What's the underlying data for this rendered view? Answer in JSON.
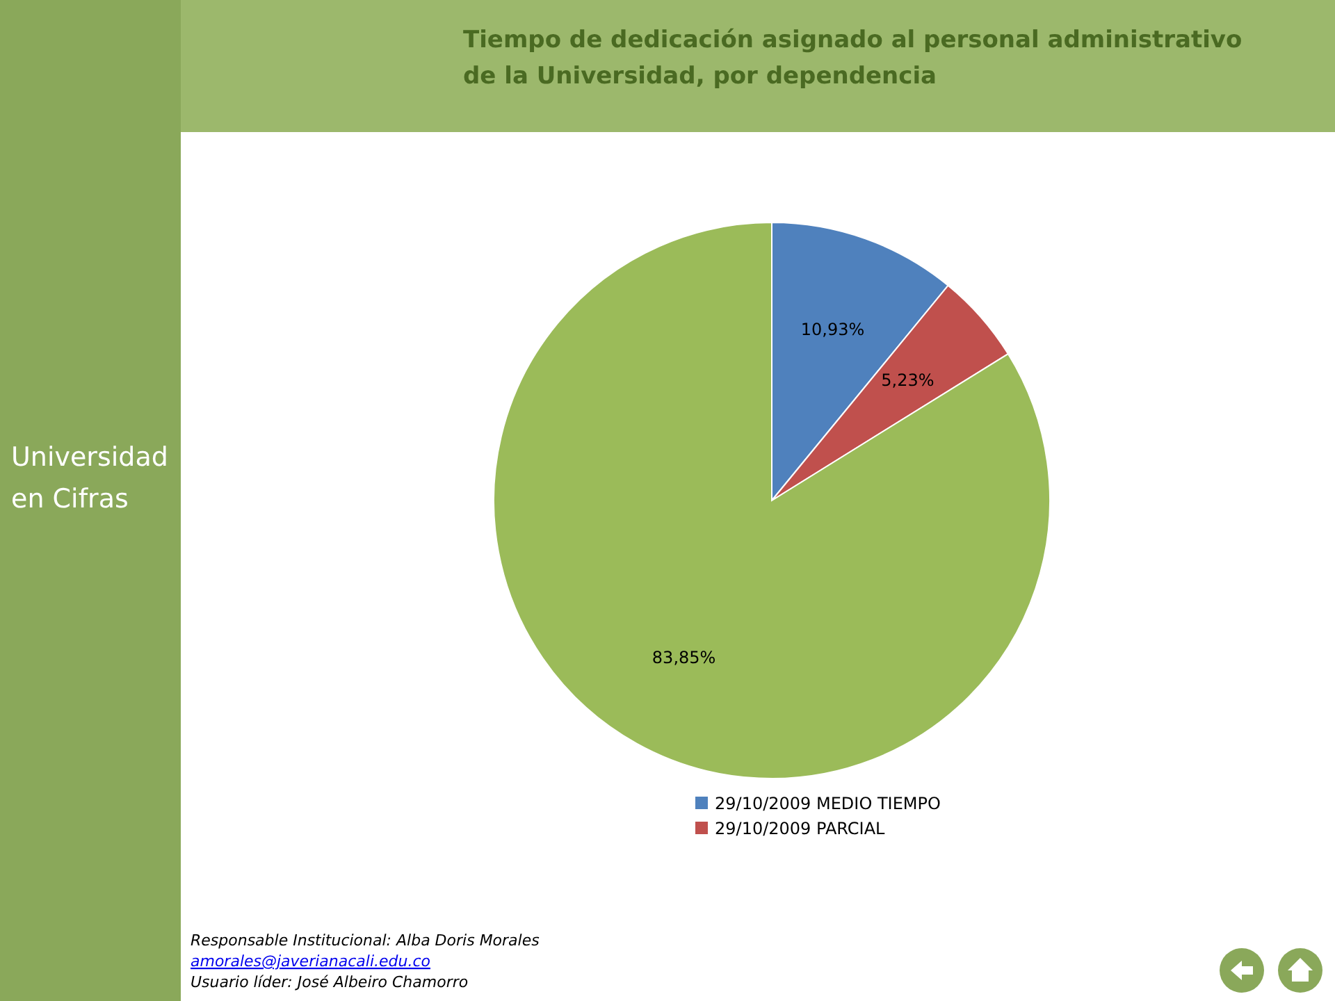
{
  "chart_data": {
    "type": "pie",
    "title": "Tiempo de dedicación asignado al personal administrativo de la Universidad, por dependencia",
    "categories": [
      "29/10/2009 MEDIO TIEMPO",
      "29/10/2009 PARCIAL",
      null
    ],
    "values": [
      10.93,
      5.23,
      83.85
    ],
    "colors": [
      "#4f81bd",
      "#c0504d",
      "#9bbb59"
    ],
    "value_labels": [
      "10,93%",
      "5,23%",
      "83,85%"
    ],
    "legend": "bottom",
    "annotations": [
      "Universidad en Cifras",
      "Responsable Institucional: Alba Doris Morales",
      "amorales@javerianacali.edu.co",
      "Usuario líder: José Albeiro Chamorro"
    ]
  }
}
